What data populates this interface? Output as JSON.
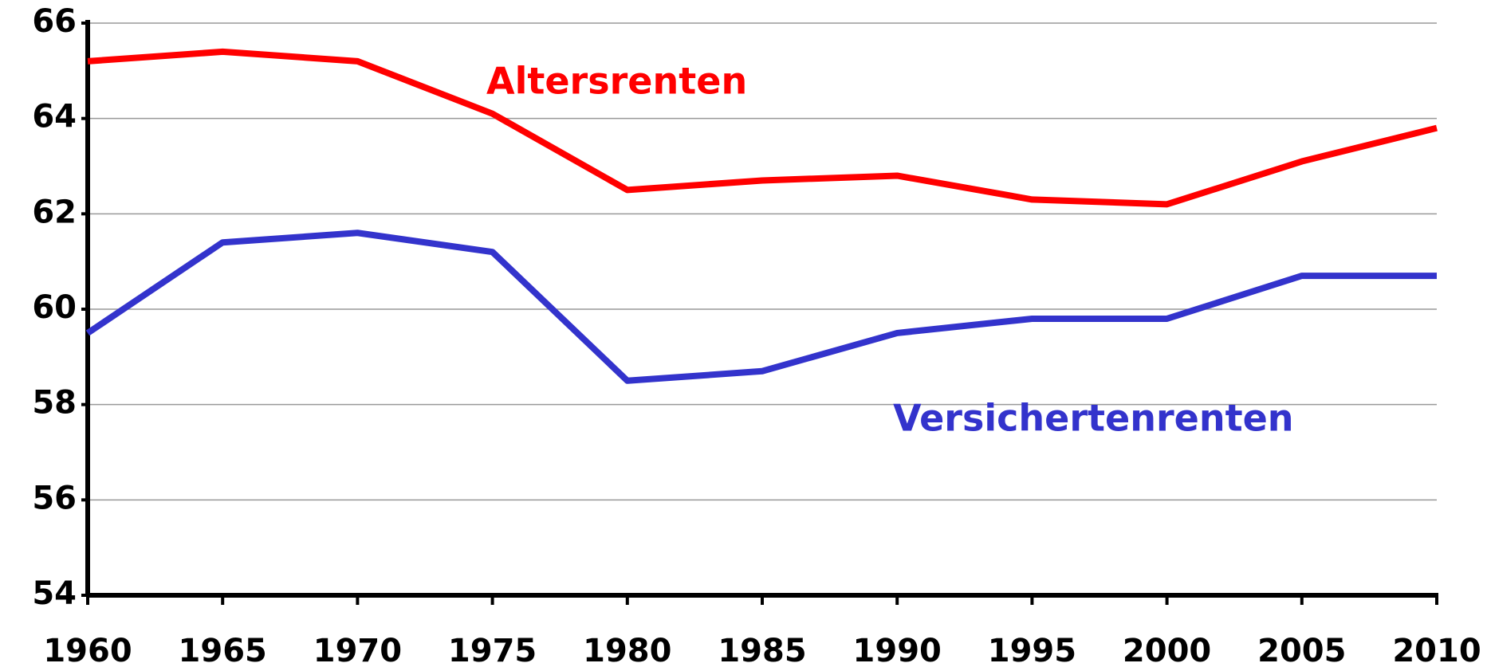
{
  "chart_data": {
    "type": "line",
    "x": [
      1960,
      1965,
      1970,
      1975,
      1980,
      1985,
      1990,
      1995,
      2000,
      2005,
      2010
    ],
    "xlim": [
      1960,
      2010
    ],
    "xticks": [
      1960,
      1965,
      1970,
      1975,
      1980,
      1985,
      1990,
      1995,
      2000,
      2005,
      2010
    ],
    "ylim": [
      54,
      66
    ],
    "yticks": [
      54,
      56,
      58,
      60,
      62,
      64,
      66
    ],
    "grid": true,
    "series": [
      {
        "name": "Altersrenten",
        "color": "#ff0000",
        "values": [
          65.2,
          65.4,
          65.2,
          64.1,
          62.5,
          62.7,
          62.8,
          62.3,
          62.2,
          63.1,
          63.8
        ]
      },
      {
        "name": "Versichertenrenten",
        "color": "#3333cc",
        "values": [
          59.5,
          61.4,
          61.6,
          61.2,
          58.5,
          58.7,
          59.5,
          59.8,
          59.8,
          60.7,
          60.7
        ]
      }
    ]
  }
}
